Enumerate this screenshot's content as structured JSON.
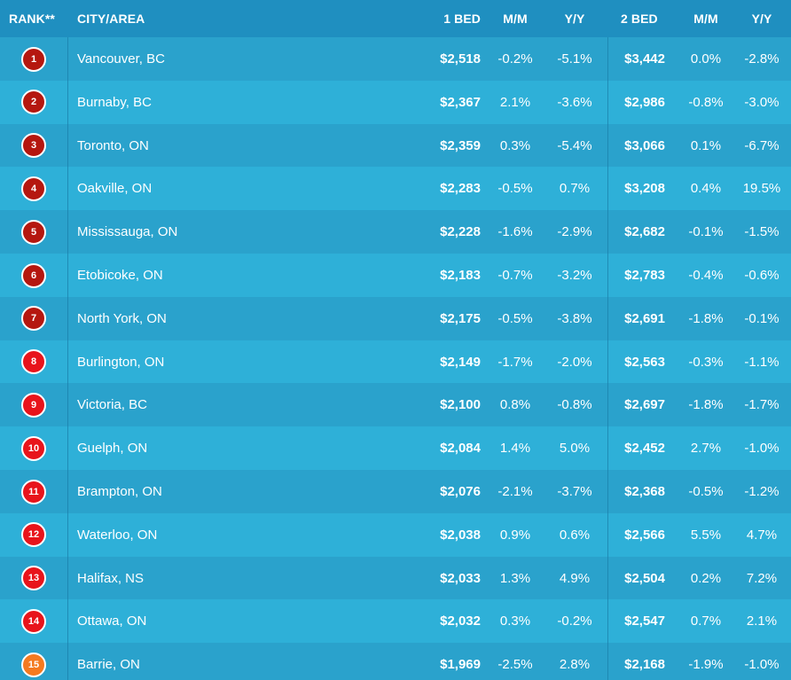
{
  "headers": {
    "rank": "RANK**",
    "city": "CITY/AREA",
    "bed1": "1 BED",
    "mm1": "M/M",
    "yy1": "Y/Y",
    "bed2": "2 BED",
    "mm2": "M/M",
    "yy2": "Y/Y"
  },
  "colors": {
    "dark_red": "#b5170f",
    "red": "#e8141b",
    "orange": "#f47a20"
  },
  "rows": [
    {
      "rank": "1",
      "city": "Vancouver, BC",
      "bed1": "$2,518",
      "mm1": "-0.2%",
      "yy1": "-5.1%",
      "bed2": "$3,442",
      "mm2": "0.0%",
      "yy2": "-2.8%",
      "badge": "#b5170f"
    },
    {
      "rank": "2",
      "city": "Burnaby, BC",
      "bed1": "$2,367",
      "mm1": "2.1%",
      "yy1": "-3.6%",
      "bed2": "$2,986",
      "mm2": "-0.8%",
      "yy2": "-3.0%",
      "badge": "#b5170f"
    },
    {
      "rank": "3",
      "city": "Toronto, ON",
      "bed1": "$2,359",
      "mm1": "0.3%",
      "yy1": "-5.4%",
      "bed2": "$3,066",
      "mm2": "0.1%",
      "yy2": "-6.7%",
      "badge": "#b5170f"
    },
    {
      "rank": "4",
      "city": "Oakville, ON",
      "bed1": "$2,283",
      "mm1": "-0.5%",
      "yy1": "0.7%",
      "bed2": "$3,208",
      "mm2": "0.4%",
      "yy2": "19.5%",
      "badge": "#b5170f"
    },
    {
      "rank": "5",
      "city": "Mississauga, ON",
      "bed1": "$2,228",
      "mm1": "-1.6%",
      "yy1": "-2.9%",
      "bed2": "$2,682",
      "mm2": "-0.1%",
      "yy2": "-1.5%",
      "badge": "#b5170f"
    },
    {
      "rank": "6",
      "city": "Etobicoke, ON",
      "bed1": "$2,183",
      "mm1": "-0.7%",
      "yy1": "-3.2%",
      "bed2": "$2,783",
      "mm2": "-0.4%",
      "yy2": "-0.6%",
      "badge": "#b5170f"
    },
    {
      "rank": "7",
      "city": "North York, ON",
      "bed1": "$2,175",
      "mm1": "-0.5%",
      "yy1": "-3.8%",
      "bed2": "$2,691",
      "mm2": "-1.8%",
      "yy2": "-0.1%",
      "badge": "#b5170f"
    },
    {
      "rank": "8",
      "city": "Burlington, ON",
      "bed1": "$2,149",
      "mm1": "-1.7%",
      "yy1": "-2.0%",
      "bed2": "$2,563",
      "mm2": "-0.3%",
      "yy2": "-1.1%",
      "badge": "#e8141b"
    },
    {
      "rank": "9",
      "city": "Victoria, BC",
      "bed1": "$2,100",
      "mm1": "0.8%",
      "yy1": "-0.8%",
      "bed2": "$2,697",
      "mm2": "-1.8%",
      "yy2": "-1.7%",
      "badge": "#e8141b"
    },
    {
      "rank": "10",
      "city": "Guelph, ON",
      "bed1": "$2,084",
      "mm1": "1.4%",
      "yy1": "5.0%",
      "bed2": "$2,452",
      "mm2": "2.7%",
      "yy2": "-1.0%",
      "badge": "#e8141b"
    },
    {
      "rank": "11",
      "city": "Brampton, ON",
      "bed1": "$2,076",
      "mm1": "-2.1%",
      "yy1": "-3.7%",
      "bed2": "$2,368",
      "mm2": "-0.5%",
      "yy2": "-1.2%",
      "badge": "#e8141b"
    },
    {
      "rank": "12",
      "city": "Waterloo, ON",
      "bed1": "$2,038",
      "mm1": "0.9%",
      "yy1": "0.6%",
      "bed2": "$2,566",
      "mm2": "5.5%",
      "yy2": "4.7%",
      "badge": "#e8141b"
    },
    {
      "rank": "13",
      "city": "Halifax, NS",
      "bed1": "$2,033",
      "mm1": "1.3%",
      "yy1": "4.9%",
      "bed2": "$2,504",
      "mm2": "0.2%",
      "yy2": "7.2%",
      "badge": "#e8141b"
    },
    {
      "rank": "14",
      "city": "Ottawa, ON",
      "bed1": "$2,032",
      "mm1": "0.3%",
      "yy1": "-0.2%",
      "bed2": "$2,547",
      "mm2": "0.7%",
      "yy2": "2.1%",
      "badge": "#e8141b"
    },
    {
      "rank": "15",
      "city": "Barrie, ON",
      "bed1": "$1,969",
      "mm1": "-2.5%",
      "yy1": "2.8%",
      "bed2": "$2,168",
      "mm2": "-1.9%",
      "yy2": "-1.0%",
      "badge": "#f47a20"
    }
  ]
}
